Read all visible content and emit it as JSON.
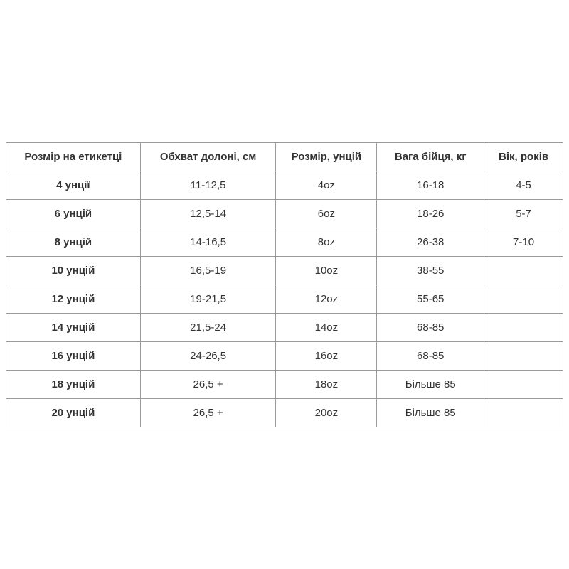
{
  "table": {
    "headers": [
      "Розмір на етикетці",
      "Обхват долоні, см",
      "Розмір, унцій",
      "Вага бійця, кг",
      "Вік, років"
    ],
    "rows": [
      [
        "4 унції",
        "11-12,5",
        "4oz",
        "16-18",
        "4-5"
      ],
      [
        "6 унцій",
        "12,5-14",
        "6oz",
        "18-26",
        "5-7"
      ],
      [
        "8 унцій",
        "14-16,5",
        "8oz",
        "26-38",
        "7-10"
      ],
      [
        "10 унцій",
        "16,5-19",
        "10oz",
        "38-55",
        ""
      ],
      [
        "12 унцій",
        "19-21,5",
        "12oz",
        "55-65",
        ""
      ],
      [
        "14 унцій",
        "21,5-24",
        "14oz",
        "68-85",
        ""
      ],
      [
        "16 унцій",
        "24-26,5",
        "16oz",
        "68-85",
        ""
      ],
      [
        "18 унцій",
        "26,5 +",
        "18oz",
        "Більше 85",
        ""
      ],
      [
        "20 унцій",
        "26,5 +",
        "20oz",
        "Більше 85",
        ""
      ]
    ]
  }
}
